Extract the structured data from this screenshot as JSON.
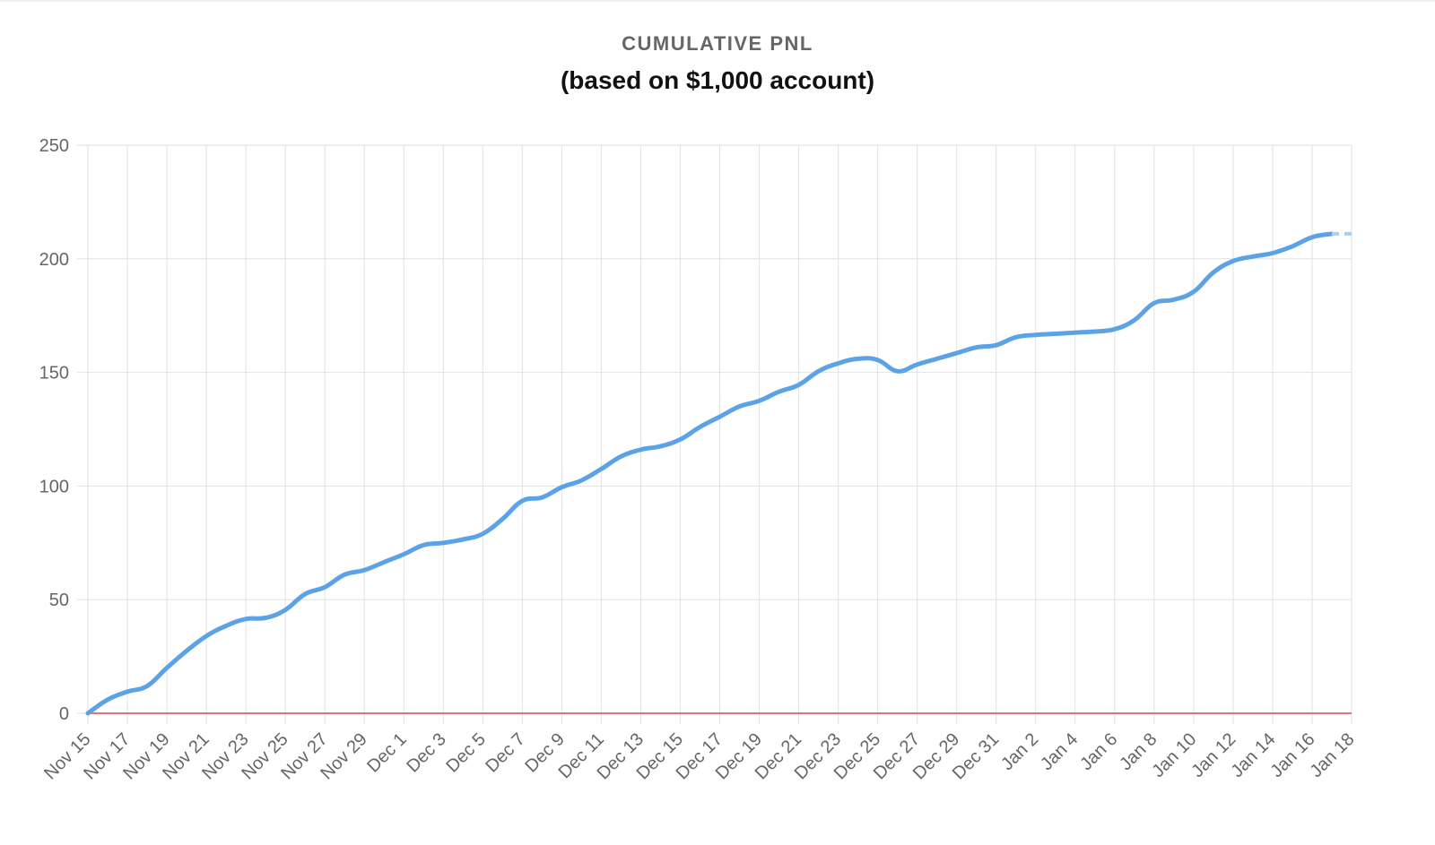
{
  "chart_data": {
    "type": "line",
    "title": "CUMULATIVE PNL",
    "subtitle": "(based on $1,000 account)",
    "xlabel": "",
    "ylabel": "",
    "ylim": [
      0,
      250
    ],
    "y_ticks": [
      0,
      50,
      100,
      150,
      200,
      250
    ],
    "x_ticks": [
      "Nov 15",
      "Nov 17",
      "Nov 19",
      "Nov 21",
      "Nov 23",
      "Nov 25",
      "Nov 27",
      "Nov 29",
      "Dec 1",
      "Dec 3",
      "Dec 5",
      "Dec 7",
      "Dec 9",
      "Dec 11",
      "Dec 13",
      "Dec 15",
      "Dec 17",
      "Dec 19",
      "Dec 21",
      "Dec 23",
      "Dec 25",
      "Dec 27",
      "Dec 29",
      "Dec 31",
      "Jan 2",
      "Jan 4",
      "Jan 6",
      "Jan 8",
      "Jan 10",
      "Jan 12",
      "Jan 14",
      "Jan 16",
      "Jan 18"
    ],
    "grid": true,
    "legend": "none",
    "series": [
      {
        "color": "#5ba3e6",
        "x": [
          "Nov 15",
          "Nov 16",
          "Nov 17",
          "Nov 18",
          "Nov 19",
          "Nov 20",
          "Nov 21",
          "Nov 22",
          "Nov 23",
          "Nov 24",
          "Nov 25",
          "Nov 26",
          "Nov 27",
          "Nov 28",
          "Nov 29",
          "Nov 30",
          "Dec 1",
          "Dec 2",
          "Dec 3",
          "Dec 4",
          "Dec 5",
          "Dec 6",
          "Dec 7",
          "Dec 8",
          "Dec 9",
          "Dec 10",
          "Dec 11",
          "Dec 12",
          "Dec 13",
          "Dec 14",
          "Dec 15",
          "Dec 16",
          "Dec 17",
          "Dec 18",
          "Dec 19",
          "Dec 20",
          "Dec 21",
          "Dec 22",
          "Dec 23",
          "Dec 24",
          "Dec 25",
          "Dec 26",
          "Dec 27",
          "Dec 28",
          "Dec 29",
          "Dec 30",
          "Dec 31",
          "Jan 1",
          "Jan 2",
          "Jan 3",
          "Jan 4",
          "Jan 5",
          "Jan 6",
          "Jan 7",
          "Jan 8",
          "Jan 9",
          "Jan 10",
          "Jan 11",
          "Jan 12",
          "Jan 13",
          "Jan 14",
          "Jan 15",
          "Jan 16",
          "Jan 17"
        ],
        "values": [
          0,
          6,
          9.5,
          12,
          20,
          27.5,
          34,
          38.5,
          41.5,
          42,
          45.5,
          52.5,
          55.5,
          61,
          63,
          66.5,
          70,
          74,
          75,
          76.5,
          79,
          85.5,
          93.5,
          95,
          99.5,
          102.5,
          107.5,
          113,
          116,
          117.5,
          120.5,
          126,
          130.5,
          135,
          137.5,
          141.5,
          144.5,
          150.5,
          154,
          156,
          155.5,
          150.5,
          153.5,
          156,
          158.5,
          161,
          162,
          165.5,
          166.5,
          167,
          167.5,
          168,
          169,
          173,
          180.5,
          182,
          185.5,
          194,
          199,
          201,
          202.5,
          205.5,
          209.5,
          211
        ]
      },
      {
        "color": "#e0747b",
        "x": [
          "Nov 15",
          "Jan 18"
        ],
        "values": [
          0,
          0
        ]
      }
    ],
    "dashed_extension": {
      "color": "#a9cff2",
      "x": [
        "Jan 17",
        "Jan 18"
      ],
      "values": [
        211,
        211
      ]
    }
  }
}
